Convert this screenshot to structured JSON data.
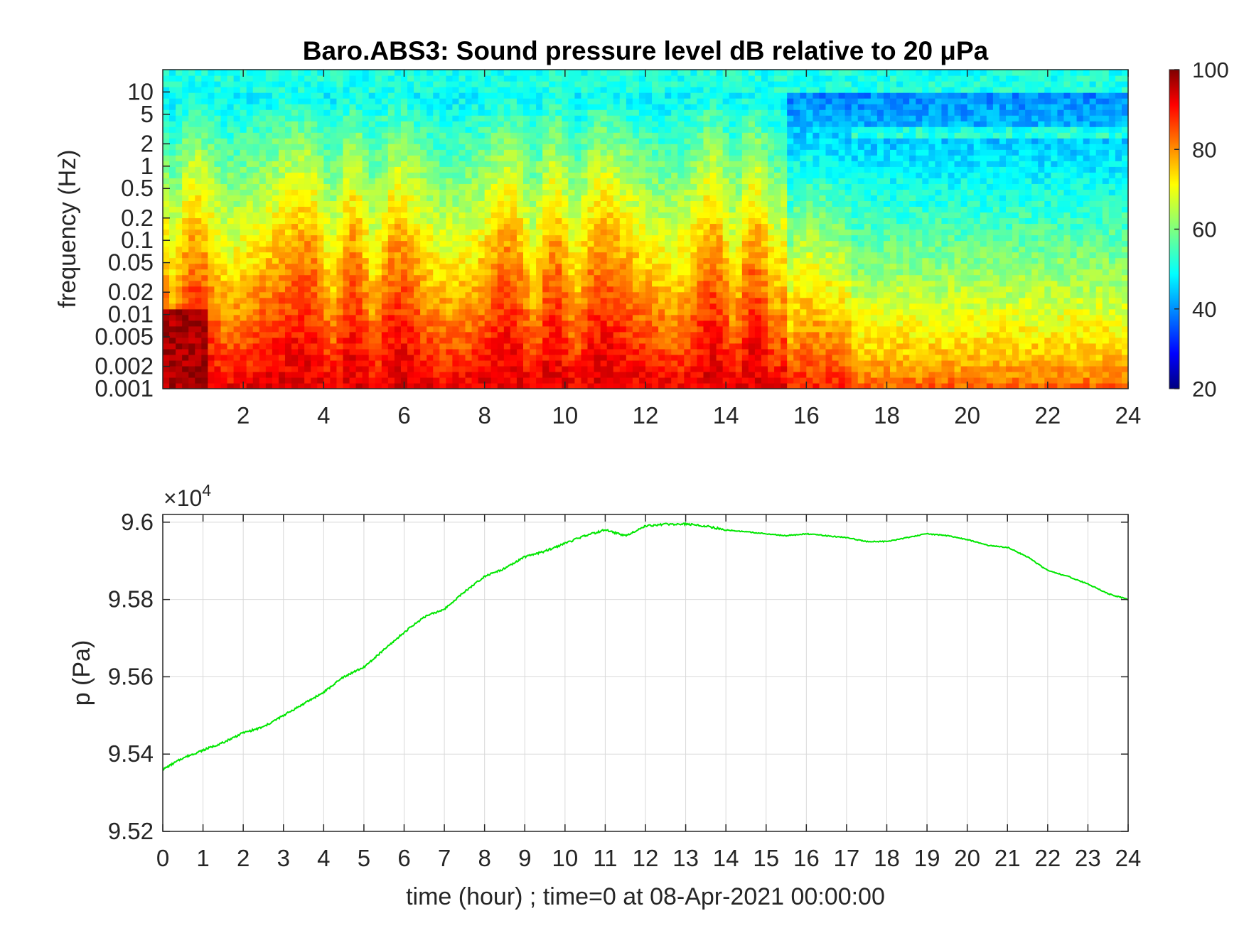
{
  "colors": {
    "line": "#00e600",
    "axis": "#262626",
    "grid": "#d9d9d9",
    "text": "#262626"
  },
  "chart_data": [
    {
      "type": "heatmap",
      "title": "Baro.ABS3: Sound pressure level dB relative to 20 μPa",
      "ylabel": "frequency (Hz)",
      "xlabel": "",
      "xlim": [
        0,
        24
      ],
      "x_ticks": [
        2,
        4,
        6,
        8,
        10,
        12,
        14,
        16,
        18,
        20,
        22,
        24
      ],
      "x_tick_labels": [
        "2",
        "4",
        "6",
        "8",
        "10",
        "12",
        "14",
        "16",
        "18",
        "20",
        "22",
        "24"
      ],
      "yscale": "log",
      "ylim": [
        0.001,
        20
      ],
      "y_ticks": [
        0.001,
        0.002,
        0.005,
        0.01,
        0.02,
        0.05,
        0.1,
        0.2,
        0.5,
        1,
        2,
        5,
        10
      ],
      "y_tick_labels": [
        "0.001",
        "0.002",
        "0.005",
        "0.01",
        "0.02",
        "0.05",
        "0.1",
        "0.2",
        "0.5",
        "1",
        "2",
        "5",
        "10"
      ],
      "colormap": "jet",
      "clim": [
        20,
        100
      ],
      "colorbar_ticks": [
        20,
        40,
        60,
        80,
        100
      ],
      "colorbar_tick_labels": [
        "20",
        "40",
        "60",
        "80",
        "100"
      ],
      "grid": false,
      "description_levels": [
        {
          "time_range": [
            0,
            15.5
          ],
          "low_freq_db": 90,
          "high_freq_db": 50
        },
        {
          "time_range": [
            15.5,
            17.2
          ],
          "low_freq_db": 85,
          "high_freq_db": 42
        },
        {
          "time_range": [
            17.2,
            24
          ],
          "low_freq_db": 78,
          "high_freq_db": 38
        }
      ]
    },
    {
      "type": "line",
      "title": "",
      "xlabel": "time (hour) ; time=0 at 08-Apr-2021 00:00:00",
      "ylabel": "p (Pa)",
      "xlim": [
        0,
        24
      ],
      "x_ticks": [
        0,
        1,
        2,
        3,
        4,
        5,
        6,
        7,
        8,
        9,
        10,
        11,
        12,
        13,
        14,
        15,
        16,
        17,
        18,
        19,
        20,
        21,
        22,
        23,
        24
      ],
      "x_tick_labels": [
        "0",
        "1",
        "2",
        "3",
        "4",
        "5",
        "6",
        "7",
        "8",
        "9",
        "10",
        "11",
        "12",
        "13",
        "14",
        "15",
        "16",
        "17",
        "18",
        "19",
        "20",
        "21",
        "22",
        "23",
        "24"
      ],
      "ylim": [
        95200,
        96020
      ],
      "y_ticks": [
        95200,
        95400,
        95600,
        95800,
        96000
      ],
      "y_tick_labels": [
        "9.52",
        "9.54",
        "9.56",
        "9.58",
        "9.6"
      ],
      "y_exponent_prefix": "×10",
      "y_exponent": "4",
      "grid": true,
      "series": [
        {
          "x": [
            0,
            0.5,
            1,
            1.5,
            2,
            2.5,
            3,
            3.5,
            4,
            4.5,
            5,
            5.5,
            6,
            6.5,
            7,
            7.5,
            8,
            8.5,
            9,
            9.5,
            10,
            10.5,
            11,
            11.5,
            12,
            12.5,
            13,
            13.5,
            14,
            14.5,
            15,
            15.5,
            16,
            16.5,
            17,
            17.5,
            18,
            18.5,
            19,
            19.5,
            20,
            20.5,
            21,
            21.5,
            22,
            22.5,
            23,
            23.5,
            24
          ],
          "y": [
            95360,
            95390,
            95410,
            95430,
            95455,
            95470,
            95500,
            95530,
            95560,
            95600,
            95625,
            95670,
            95715,
            95755,
            95775,
            95820,
            95860,
            95880,
            95910,
            95925,
            95945,
            95965,
            95980,
            95965,
            95990,
            95995,
            95995,
            95990,
            95980,
            95975,
            95970,
            95965,
            95970,
            95965,
            95960,
            95950,
            95950,
            95960,
            95970,
            95965,
            95955,
            95940,
            95935,
            95910,
            95875,
            95860,
            95840,
            95815,
            95800
          ]
        }
      ]
    }
  ]
}
